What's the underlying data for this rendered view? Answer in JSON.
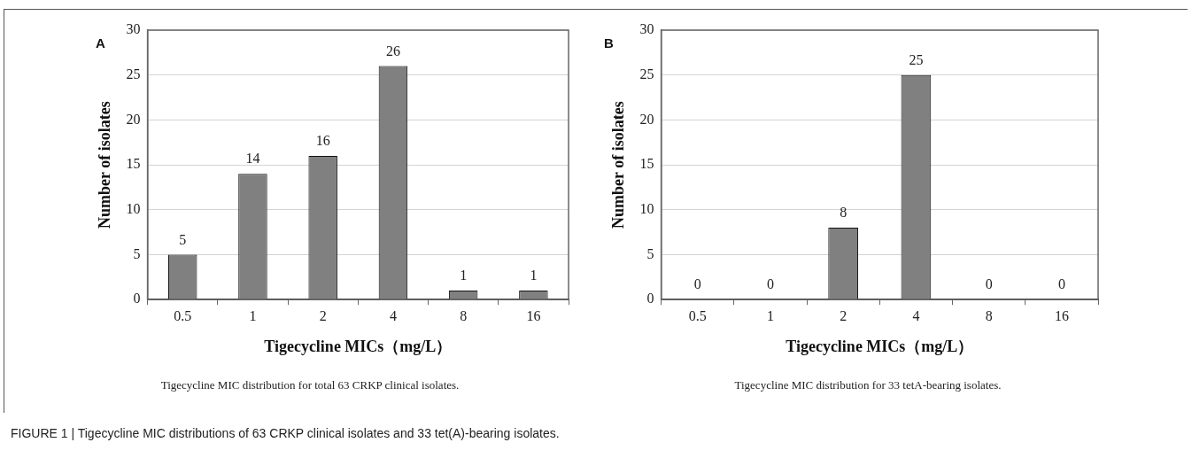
{
  "chart_data": [
    {
      "type": "bar",
      "title": "A",
      "categories": [
        "0.5",
        "1",
        "2",
        "4",
        "8",
        "16"
      ],
      "values": [
        5,
        14,
        16,
        26,
        1,
        1
      ],
      "color": "#808080",
      "data_labels": true,
      "xlabel": "Tigecycline MICs（mg/L）",
      "ylabel": "Number of isolates",
      "ylim": [
        0,
        30
      ],
      "yticks": [
        0,
        5,
        10,
        15,
        20,
        25,
        30
      ],
      "grid": "y",
      "legend": false,
      "annotations": [
        "Tigecycline MIC distribution for total 63 CRKP clinical isolates.",
        "FIGURE 1 | Tigecycline MIC distributions of 63 CRKP clinical isolates and 33 tet(A)-bearing isolates."
      ]
    },
    {
      "type": "bar",
      "title": "B",
      "categories": [
        "0.5",
        "1",
        "2",
        "4",
        "8",
        "16"
      ],
      "values": [
        0,
        0,
        8,
        25,
        0,
        0
      ],
      "color": "#808080",
      "data_labels": true,
      "xlabel": "Tigecycline MICs（mg/L）",
      "ylabel": "Number of isolates",
      "ylim": [
        0,
        30
      ],
      "yticks": [
        0,
        5,
        10,
        15,
        20,
        25,
        30
      ],
      "grid": "y",
      "legend": false,
      "annotations": [
        "Tigecycline MIC distribution for 33 tetA-bearing isolates."
      ]
    }
  ]
}
